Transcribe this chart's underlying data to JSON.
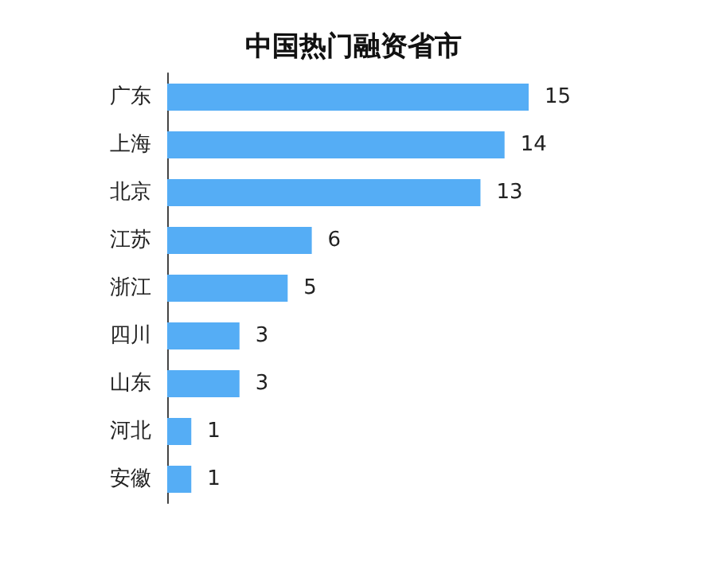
{
  "chart_data": {
    "type": "bar",
    "orientation": "horizontal",
    "title": "中国热门融资省市",
    "categories": [
      "广东",
      "上海",
      "北京",
      "江苏",
      "浙江",
      "四川",
      "山东",
      "河北",
      "安徽"
    ],
    "values": [
      15,
      14,
      13,
      6,
      5,
      3,
      3,
      1,
      1
    ],
    "color": "#55adf5",
    "data_labels": true
  }
}
